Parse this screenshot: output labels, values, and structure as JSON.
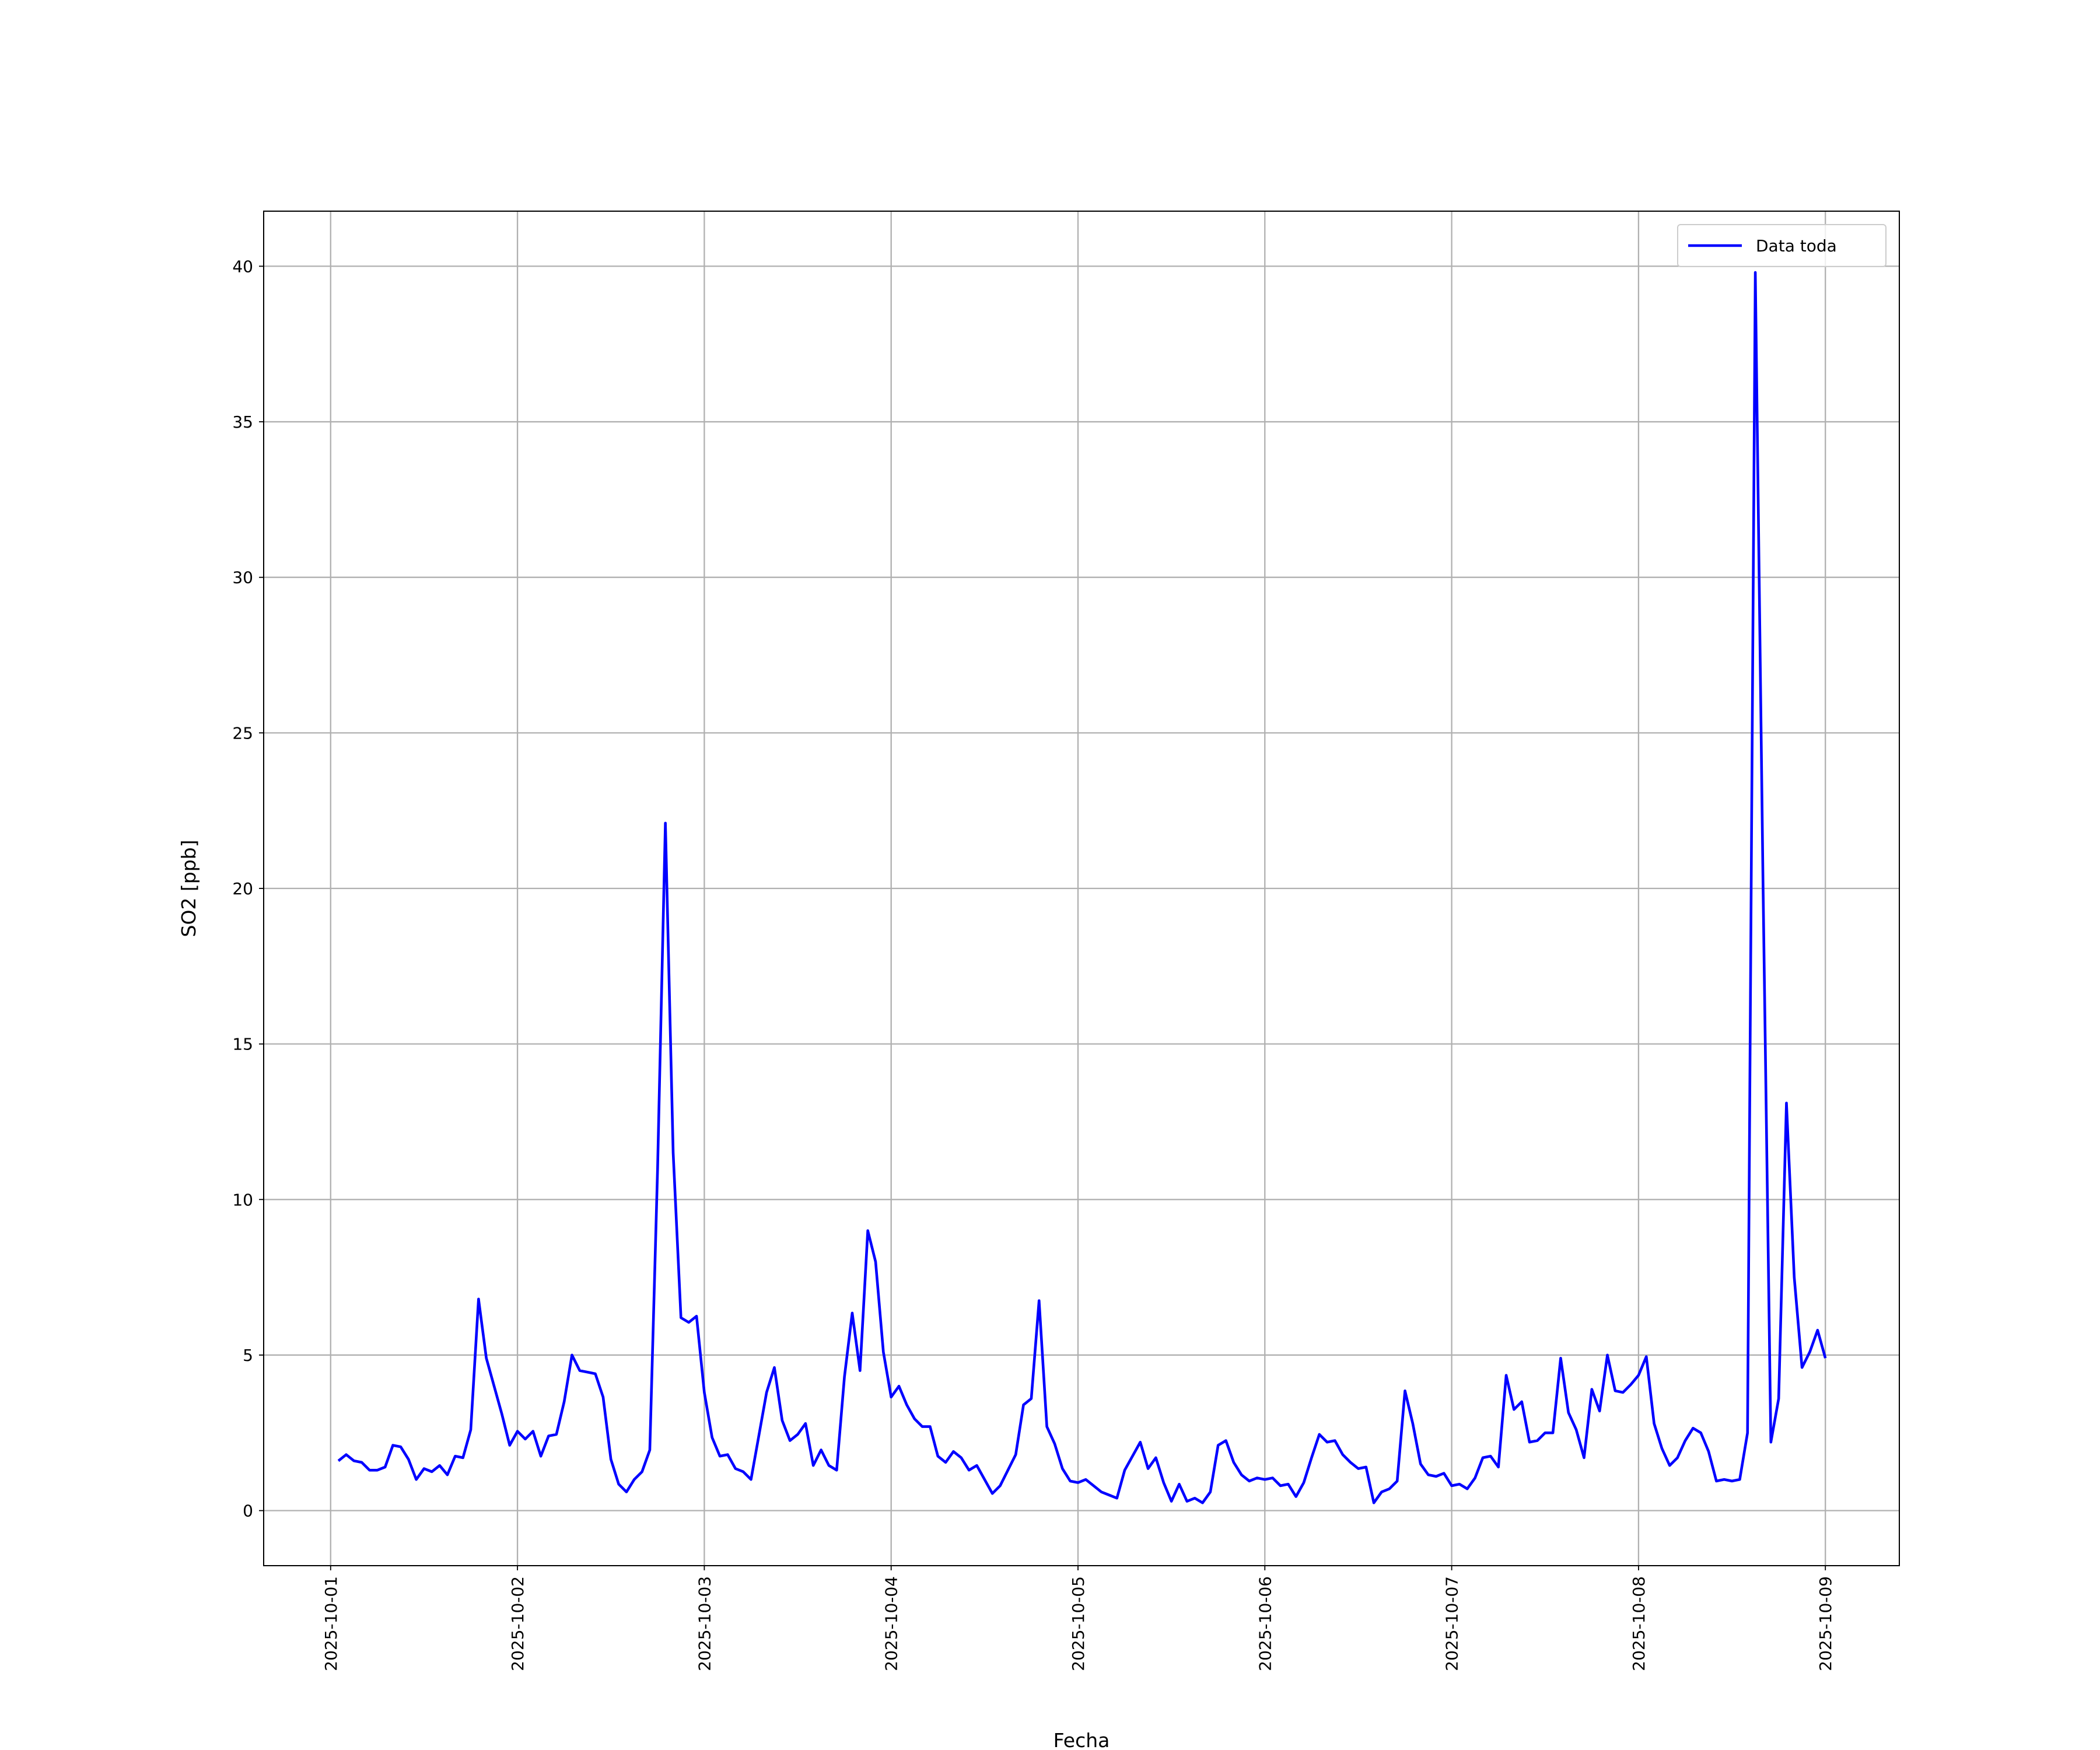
{
  "chart_data": {
    "type": "line",
    "xlabel": "Fecha",
    "ylabel": "SO2 [ppb]",
    "x": [
      1,
      2,
      3,
      4,
      5,
      6,
      7,
      8,
      9,
      10,
      11,
      12,
      13,
      14,
      15,
      16,
      17,
      18,
      19,
      20,
      21,
      22,
      23,
      24,
      25,
      26,
      27,
      28,
      29,
      30,
      31,
      32,
      33,
      34,
      35,
      36,
      37,
      38,
      39,
      40,
      41,
      42,
      43,
      44,
      45,
      46,
      47,
      48,
      49,
      50,
      51,
      52,
      53,
      54,
      55,
      56,
      57,
      58,
      59,
      60,
      61,
      62,
      63,
      64,
      65,
      66,
      67,
      68,
      69,
      70,
      71,
      72,
      73,
      74,
      75,
      76,
      77,
      78,
      79,
      80,
      81,
      82,
      83,
      84,
      85,
      86,
      87,
      88,
      89,
      90,
      91,
      92,
      93,
      94,
      95,
      96,
      97,
      98,
      99,
      100,
      101,
      102,
      103,
      104,
      105,
      106,
      107,
      108,
      109,
      110,
      111,
      112,
      113,
      114,
      115,
      116,
      117,
      118,
      119,
      120,
      121,
      122,
      123,
      124,
      125,
      126,
      127,
      128,
      129,
      130,
      131,
      132,
      133,
      134,
      135,
      136,
      137,
      138,
      139,
      140,
      141,
      142,
      143,
      144,
      145,
      146,
      147,
      148,
      149,
      150,
      151,
      152,
      153,
      154,
      155,
      156,
      157,
      158,
      159,
      160,
      161,
      162,
      163,
      164,
      165,
      166,
      167,
      168,
      169,
      170,
      171,
      172,
      173,
      174,
      175,
      176,
      177,
      178,
      179,
      180,
      181,
      182,
      183,
      184,
      185,
      186,
      187,
      188,
      189,
      190,
      191,
      192
    ],
    "series": [
      {
        "name": "Data toda",
        "color": "#0000ff",
        "values": [
          1.6,
          1.8,
          1.6,
          1.55,
          1.3,
          1.3,
          1.4,
          2.1,
          2.05,
          1.65,
          1.0,
          1.35,
          1.25,
          1.45,
          1.15,
          1.75,
          1.7,
          2.6,
          6.8,
          4.9,
          4.0,
          3.1,
          2.1,
          2.55,
          2.3,
          2.55,
          1.75,
          2.4,
          2.45,
          3.5,
          5.0,
          4.5,
          4.45,
          4.4,
          3.65,
          1.65,
          0.85,
          0.6,
          1.0,
          1.25,
          1.95,
          11,
          22.1,
          11.5,
          6.2,
          6.05,
          6.25,
          3.8,
          2.35,
          1.75,
          1.8,
          1.35,
          1.25,
          1.0,
          2.4,
          3.8,
          4.6,
          2.9,
          2.25,
          2.45,
          2.8,
          1.45,
          1.95,
          1.45,
          1.3,
          4.3,
          6.35,
          4.5,
          9.0,
          8.0,
          5.1,
          3.65,
          4.0,
          3.4,
          2.95,
          2.7,
          2.7,
          1.75,
          1.55,
          1.9,
          1.7,
          1.3,
          1.45,
          1.0,
          0.55,
          0.8,
          1.3,
          1.8,
          3.4,
          3.6,
          6.75,
          2.7,
          2.15,
          1.35,
          0.95,
          0.9,
          1.0,
          0.8,
          0.6,
          0.5,
          0.4,
          1.3,
          1.75,
          2.2,
          1.35,
          1.7,
          0.9,
          0.3,
          0.85,
          0.3,
          0.4,
          0.25,
          0.6,
          2.1,
          2.25,
          1.55,
          1.15,
          0.95,
          1.05,
          1.0,
          1.05,
          0.8,
          0.85,
          0.45,
          0.9,
          1.7,
          2.45,
          2.2,
          2.25,
          1.8,
          1.55,
          1.35,
          1.4,
          0.25,
          0.6,
          0.7,
          0.95,
          3.85,
          2.8,
          1.5,
          1.15,
          1.1,
          1.2,
          0.8,
          0.85,
          0.7,
          1.05,
          1.7,
          1.75,
          1.4,
          4.35,
          3.25,
          3.5,
          2.2,
          2.25,
          2.5,
          2.5,
          4.9,
          3.15,
          2.6,
          1.7,
          3.9,
          3.2,
          5.0,
          3.85,
          3.8,
          4.05,
          4.35,
          4.95,
          2.8,
          2.0,
          1.45,
          1.7,
          2.25,
          2.65,
          2.5,
          1.9,
          0.95,
          1.0,
          0.95,
          1.0,
          2.5,
          39.8,
          20,
          2.2,
          3.6,
          13.1,
          7.5,
          4.6,
          5.1,
          5.8,
          4.9
        ]
      }
    ],
    "xlim": [
      -8.6,
      201.5
    ],
    "xticks": [
      {
        "value": 0,
        "label": "2025-10-01"
      },
      {
        "value": 24,
        "label": "2025-10-02"
      },
      {
        "value": 48,
        "label": "2025-10-03"
      },
      {
        "value": 72,
        "label": "2025-10-04"
      },
      {
        "value": 96,
        "label": "2025-10-05"
      },
      {
        "value": 120,
        "label": "2025-10-06"
      },
      {
        "value": 144,
        "label": "2025-10-07"
      },
      {
        "value": 168,
        "label": "2025-10-08"
      },
      {
        "value": 192,
        "label": "2025-10-09"
      }
    ],
    "ylim": [
      -1.77,
      41.77
    ],
    "yticks": [
      0,
      5,
      10,
      15,
      20,
      25,
      30,
      35,
      40
    ],
    "grid": true,
    "legend": "upper right"
  }
}
